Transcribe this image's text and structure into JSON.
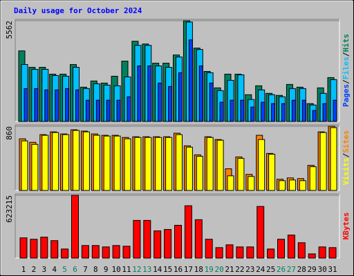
{
  "chart_data": [
    {
      "type": "bar",
      "title": "Daily usage for October 2024",
      "ylim": [
        0,
        5562
      ],
      "yticks": [
        5562
      ],
      "separator": "/",
      "series": [
        {
          "name": "Hits",
          "color": "#00805c",
          "values": [
            3897,
            2989,
            2989,
            2611,
            2611,
            3141,
            1892,
            2233,
            2119,
            2497,
            3330,
            4427,
            4276,
            3216,
            3216,
            3670,
            5562,
            4049,
            2762,
            1854,
            2611,
            2611,
            1476,
            1968,
            1551,
            1438,
            2043,
            1892,
            984,
            1854,
            2422
          ]
        },
        {
          "name": "Files",
          "color": "#00c0ff",
          "values": [
            3141,
            2876,
            2876,
            2535,
            2497,
            2989,
            1816,
            2081,
            2006,
            1968,
            2460,
            4200,
            4200,
            3065,
            2989,
            3557,
            5487,
            3973,
            2687,
            1703,
            2270,
            2573,
            1211,
            1741,
            1476,
            1362,
            1816,
            1816,
            908,
            1551,
            2308
          ]
        },
        {
          "name": "Pages",
          "color": "#0040ff",
          "values": [
            1816,
            1816,
            1741,
            1741,
            1816,
            1741,
            1173,
            1173,
            1173,
            1173,
            1362,
            3065,
            3065,
            2119,
            1930,
            2687,
            4503,
            3065,
            2119,
            1060,
            1173,
            1173,
            795,
            1060,
            984,
            984,
            1173,
            1173,
            605,
            984,
            1173
          ]
        }
      ]
    },
    {
      "type": "bar",
      "ylim": [
        0,
        860
      ],
      "yticks": [
        860
      ],
      "separator": "/",
      "series": [
        {
          "name": "Sites",
          "color": "#ff8000",
          "values": [
            692,
            645,
            748,
            785,
            757,
            813,
            795,
            757,
            739,
            739,
            710,
            720,
            720,
            720,
            720,
            767,
            598,
            477,
            720,
            682,
            290,
            449,
            215,
            739,
            496,
            150,
            168,
            159,
            337,
            785,
            860
          ]
        },
        {
          "name": "Visits",
          "color": "#ffff00",
          "values": [
            664,
            617,
            739,
            776,
            748,
            804,
            785,
            739,
            729,
            729,
            692,
            710,
            710,
            710,
            710,
            748,
            580,
            458,
            710,
            673,
            196,
            430,
            187,
            682,
            486,
            131,
            140,
            131,
            318,
            776,
            842
          ]
        }
      ]
    },
    {
      "type": "bar",
      "ylim": [
        0,
        623215
      ],
      "yticks": [
        623215
      ],
      "categories": [
        "1",
        "2",
        "3",
        "4",
        "5",
        "6",
        "7",
        "8",
        "9",
        "10",
        "11",
        "12",
        "13",
        "14",
        "15",
        "16",
        "17",
        "18",
        "19",
        "20",
        "21",
        "22",
        "23",
        "24",
        "25",
        "26",
        "27",
        "28",
        "29",
        "30",
        "31"
      ],
      "category_colors": [
        "#000000",
        "#000000",
        "#000000",
        "#000000",
        "#00805c",
        "#00805c",
        "#000000",
        "#000000",
        "#000000",
        "#000000",
        "#000000",
        "#00805c",
        "#00805c",
        "#000000",
        "#000000",
        "#000000",
        "#000000",
        "#000000",
        "#00805c",
        "#00805c",
        "#000000",
        "#000000",
        "#000000",
        "#000000",
        "#000000",
        "#00805c",
        "#00805c",
        "#000000",
        "#000000",
        "#000000",
        "#000000"
      ],
      "series": [
        {
          "name": "KBytes",
          "color": "#ff0000",
          "values": [
            200825,
            186975,
            207750,
            173125,
            90025,
            623215,
            124650,
            124650,
            110800,
            124650,
            117725,
            373950,
            373950,
            270075,
            283925,
            325475,
            519375,
            380875,
            186975,
            103875,
            131575,
            110800,
            110800,
            512450,
            90025,
            186975,
            228525,
            152350,
            41550,
            110800,
            103875
          ]
        }
      ]
    }
  ]
}
